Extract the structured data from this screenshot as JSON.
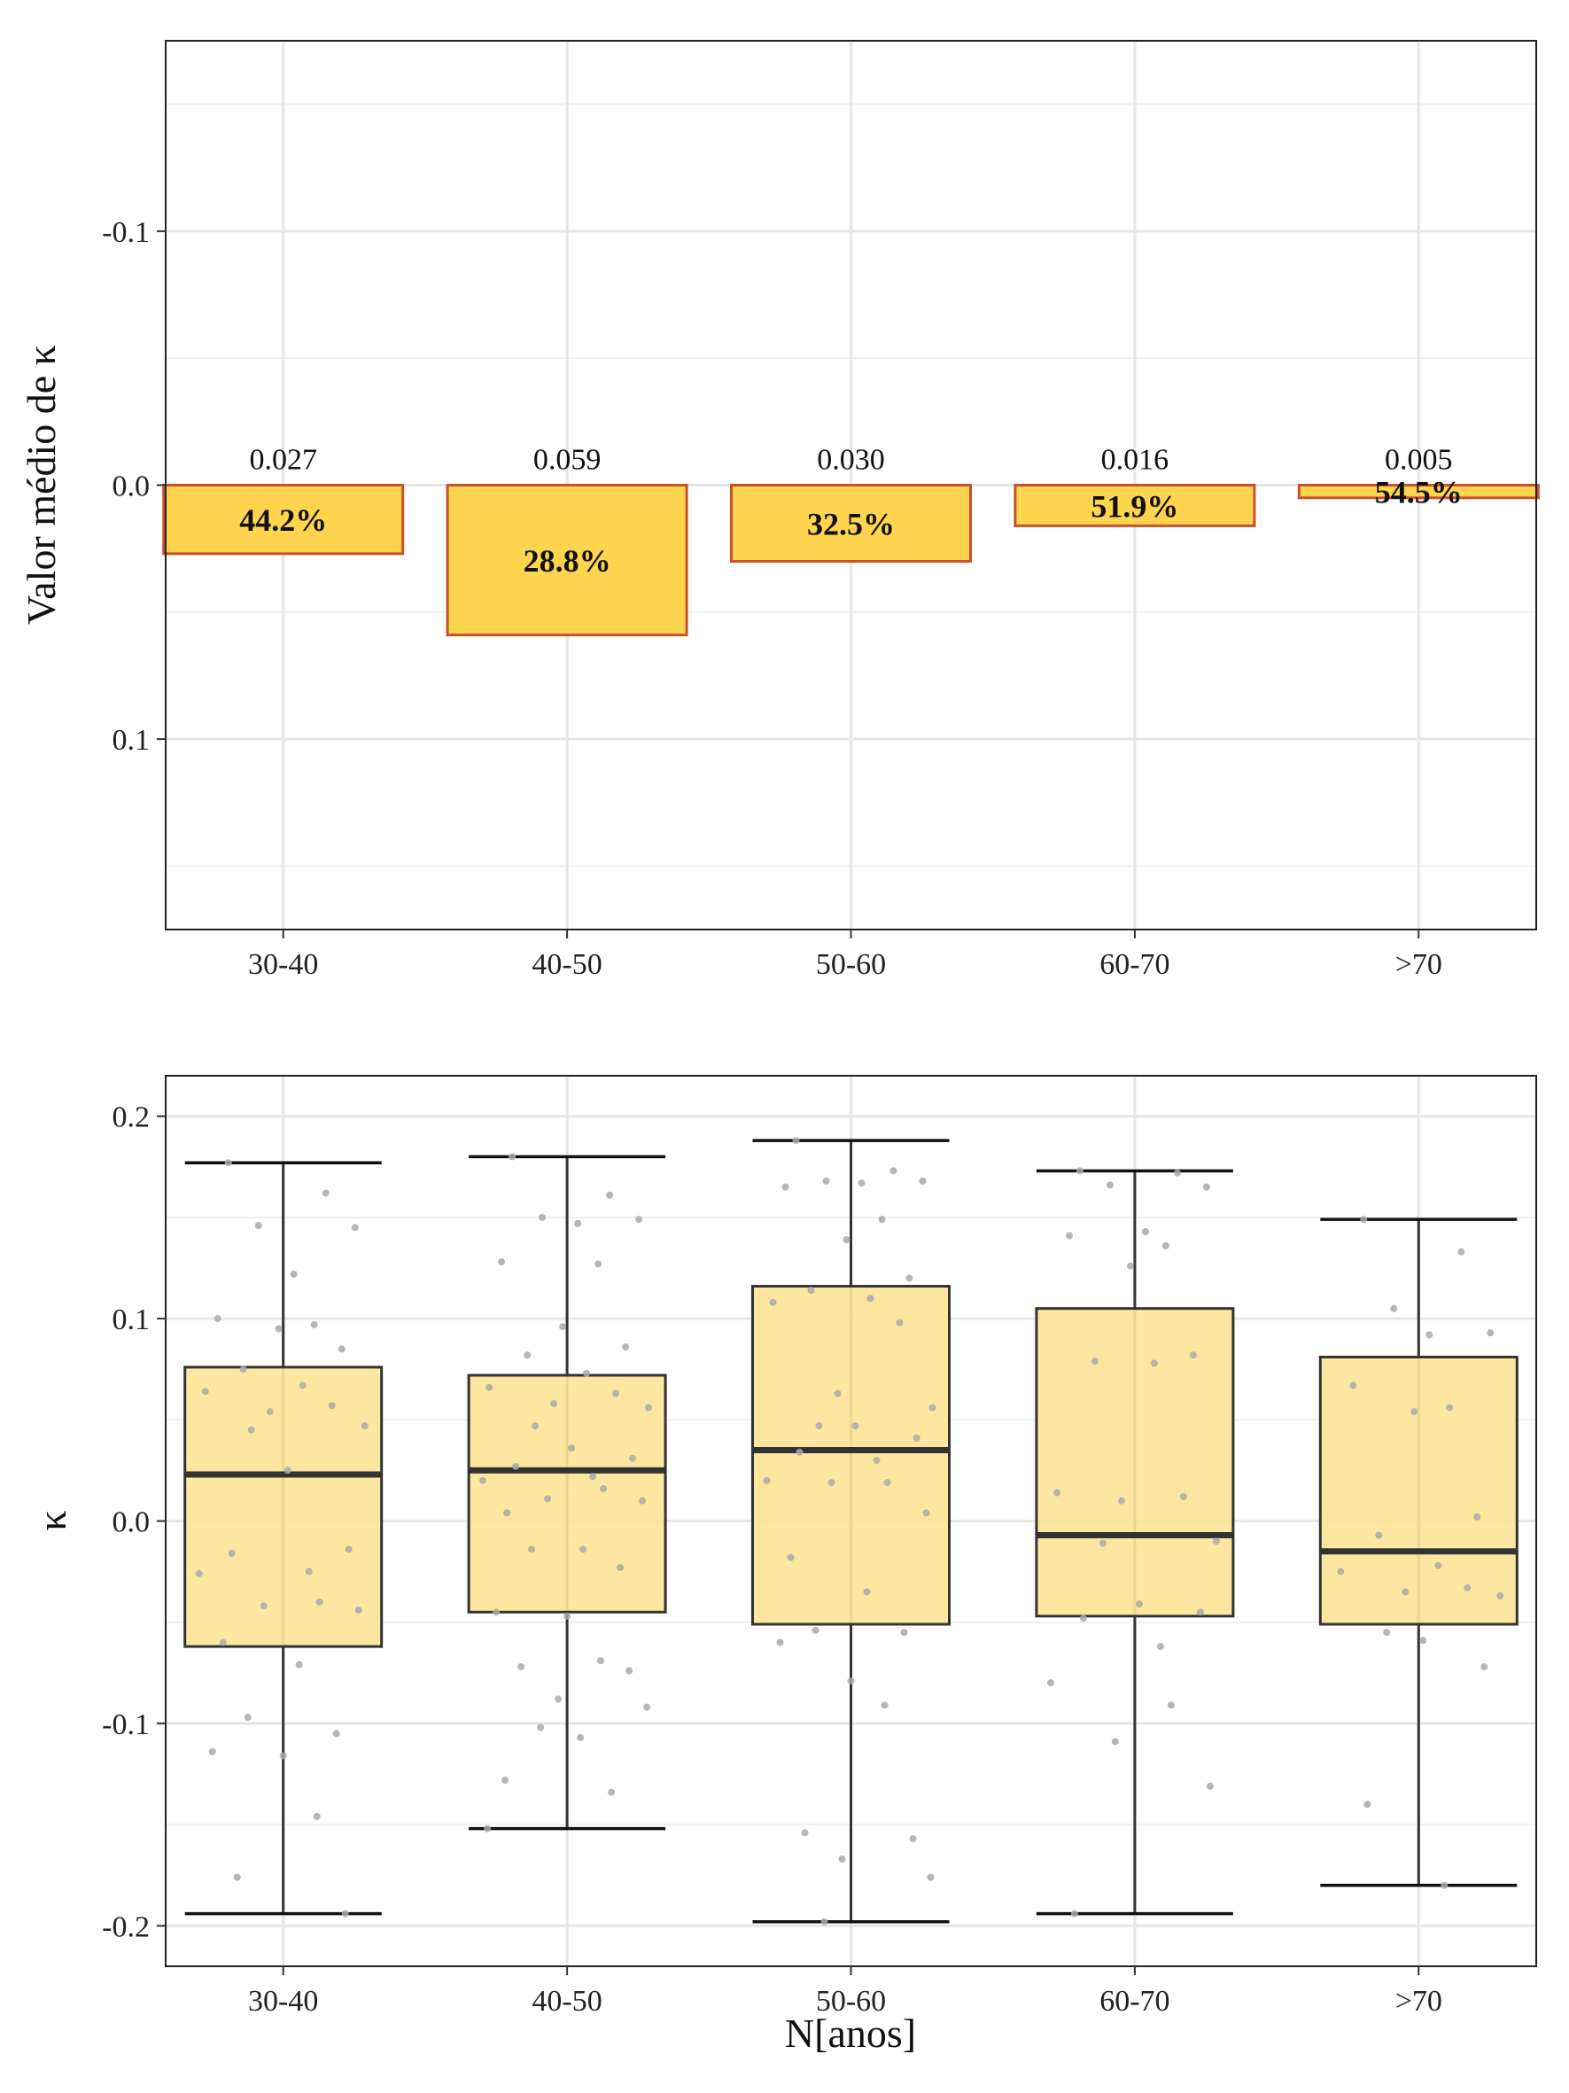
{
  "colors": {
    "bar_fill": "#FFD54F",
    "bar_stroke": "#C8502A",
    "box_fill": "#FDE598",
    "box_stroke": "#333333",
    "point": "#A9A9A9",
    "grid": "#E6E6E6"
  },
  "chart_data": [
    {
      "type": "bar",
      "categories": [
        "30-40",
        "40-50",
        "50-60",
        "60-70",
        ">70"
      ],
      "values": [
        0.027,
        0.059,
        0.03,
        0.016,
        0.005
      ],
      "value_labels": [
        "0.027",
        "0.059",
        "0.030",
        "0.016",
        "0.005"
      ],
      "percent_labels": [
        "44.2%",
        "28.8%",
        "32.5%",
        "51.9%",
        "54.5%"
      ],
      "ylabel": "Valor médio de κ",
      "ylim": [
        -0.175,
        0.175
      ],
      "y_axis_reversed": true,
      "yticks": [
        -0.1,
        0.0,
        0.1
      ],
      "ytick_labels": [
        "-0.1",
        "0.0",
        "0.1"
      ],
      "grid": true
    },
    {
      "type": "box",
      "categories": [
        "30-40",
        "40-50",
        "50-60",
        "60-70",
        ">70"
      ],
      "boxes": [
        {
          "whisker_low": -0.194,
          "q1": -0.062,
          "median": 0.023,
          "q3": 0.076,
          "whisker_high": 0.177
        },
        {
          "whisker_low": -0.152,
          "q1": -0.045,
          "median": 0.025,
          "q3": 0.072,
          "whisker_high": 0.18
        },
        {
          "whisker_low": -0.198,
          "q1": -0.051,
          "median": 0.035,
          "q3": 0.116,
          "whisker_high": 0.188
        },
        {
          "whisker_low": -0.194,
          "q1": -0.047,
          "median": -0.007,
          "q3": 0.105,
          "whisker_high": 0.173
        },
        {
          "whisker_low": -0.18,
          "q1": -0.051,
          "median": -0.015,
          "q3": 0.081,
          "whisker_high": 0.149
        }
      ],
      "points": [
        [
          0.177,
          0.162,
          0.146,
          0.145,
          0.122,
          0.1,
          0.097,
          0.095,
          0.085,
          0.075,
          0.067,
          0.064,
          0.057,
          0.054,
          0.047,
          0.045,
          0.025,
          -0.014,
          -0.016,
          -0.025,
          -0.026,
          -0.04,
          -0.042,
          -0.044,
          -0.06,
          -0.071,
          -0.097,
          -0.105,
          -0.114,
          -0.116,
          -0.146,
          -0.176,
          -0.194
        ],
        [
          0.18,
          0.161,
          0.15,
          0.149,
          0.147,
          0.128,
          0.127,
          0.096,
          0.086,
          0.082,
          0.073,
          0.066,
          0.063,
          0.058,
          0.056,
          0.047,
          0.036,
          0.031,
          0.027,
          0.022,
          0.02,
          0.016,
          0.011,
          0.01,
          0.004,
          -0.014,
          -0.014,
          -0.023,
          -0.045,
          -0.047,
          -0.069,
          -0.072,
          -0.074,
          -0.088,
          -0.092,
          -0.102,
          -0.107,
          -0.128,
          -0.134,
          -0.152
        ],
        [
          0.188,
          0.173,
          0.168,
          0.168,
          0.167,
          0.165,
          0.149,
          0.139,
          0.12,
          0.114,
          0.11,
          0.108,
          0.098,
          0.063,
          0.056,
          0.047,
          0.047,
          0.041,
          0.034,
          0.03,
          0.02,
          0.019,
          0.019,
          0.004,
          -0.018,
          -0.035,
          -0.054,
          -0.055,
          -0.06,
          -0.079,
          -0.091,
          -0.154,
          -0.157,
          -0.167,
          -0.176,
          -0.198
        ],
        [
          0.173,
          0.172,
          0.166,
          0.165,
          0.143,
          0.141,
          0.136,
          0.126,
          0.082,
          0.079,
          0.078,
          0.014,
          0.012,
          0.01,
          -0.01,
          -0.011,
          -0.041,
          -0.045,
          -0.048,
          -0.062,
          -0.08,
          -0.091,
          -0.109,
          -0.131,
          -0.194
        ],
        [
          0.149,
          0.133,
          0.105,
          0.093,
          0.092,
          0.067,
          0.056,
          0.054,
          0.002,
          -0.007,
          -0.022,
          -0.025,
          -0.033,
          -0.035,
          -0.037,
          -0.055,
          -0.059,
          -0.072,
          -0.14,
          -0.18
        ]
      ],
      "xlabel": "N[anos]",
      "ylabel": "κ",
      "ylim": [
        -0.22,
        0.22
      ],
      "yticks": [
        0.2,
        0.1,
        0.0,
        -0.1,
        -0.2
      ],
      "ytick_labels": [
        "0.2",
        "0.1",
        "0.0",
        "-0.1",
        "-0.2"
      ],
      "grid": true
    }
  ]
}
